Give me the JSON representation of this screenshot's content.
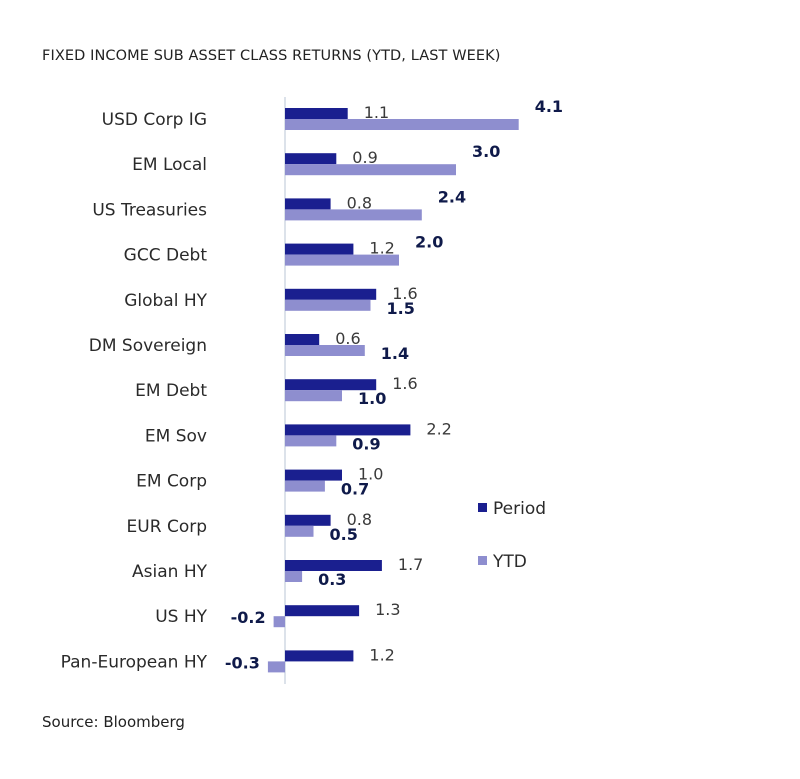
{
  "chart_data": {
    "type": "bar",
    "orientation": "horizontal",
    "title": "FIXED INCOME SUB ASSET CLASS RETURNS (YTD, LAST WEEK)",
    "source": "Source: Bloomberg",
    "categories": [
      "USD Corp IG",
      "EM Local",
      "US Treasuries",
      "GCC Debt",
      "Global HY",
      "DM Sovereign",
      "EM Debt",
      "EM Sov",
      "EM Corp",
      "EUR Corp",
      "Asian HY",
      "US HY",
      "Pan-European HY"
    ],
    "series": [
      {
        "name": "Period",
        "color": "#1a1f8f",
        "values": [
          1.1,
          0.9,
          0.8,
          1.2,
          1.6,
          0.6,
          1.6,
          2.2,
          1.0,
          0.8,
          1.7,
          1.3,
          1.2
        ]
      },
      {
        "name": "YTD",
        "color": "#8e8ecf",
        "values": [
          4.1,
          3.0,
          2.4,
          2.0,
          1.5,
          1.4,
          1.0,
          0.9,
          0.7,
          0.5,
          0.3,
          -0.2,
          -0.3
        ]
      }
    ],
    "legend_position": "right",
    "grid": false
  }
}
